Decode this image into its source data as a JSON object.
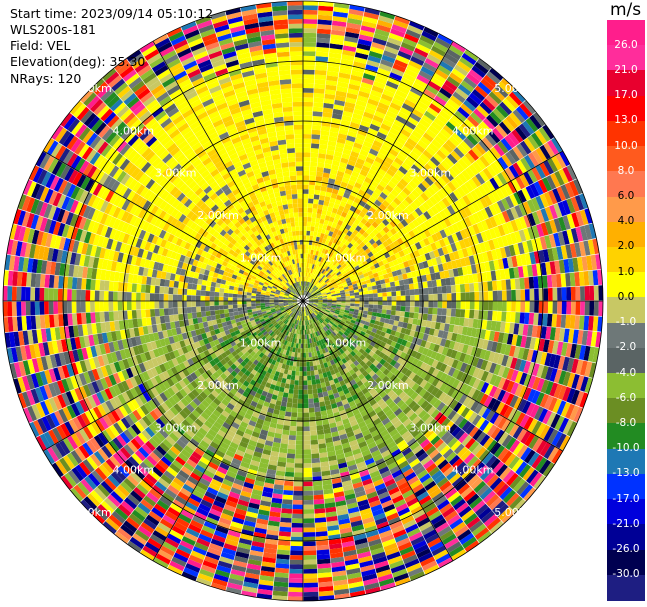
{
  "header": {
    "start_time": "Start time: 2023/09/14 05:10:12",
    "instrument": "WLS200s-181",
    "field": "Field: VEL",
    "elevation": "Elevation(deg): 35.30",
    "nrays": "NRays: 120"
  },
  "colorbar": {
    "unit": "m/s",
    "ticks": [
      "26.0",
      "21.0",
      "17.0",
      "13.0",
      "10.0",
      "8.0",
      "6.0",
      "4.0",
      "2.0",
      "1.0",
      "0.0",
      "-1.0",
      "-2.0",
      "-4.0",
      "-6.0",
      "-8.0",
      "-10.0",
      "-13.0",
      "-17.0",
      "-21.0",
      "-26.0",
      "-30.0"
    ],
    "colors": [
      "#ff1e8c",
      "#ff2d9b",
      "#e8002e",
      "#ff0000",
      "#ff3300",
      "#ff5a1e",
      "#ff7850",
      "#ff9a4a",
      "#ffb000",
      "#ffd200",
      "#ffff00",
      "#c8c864",
      "#6e7878",
      "#5a6464",
      "#8cbe32",
      "#6b8e23",
      "#228b22",
      "#1e78b4",
      "#0032ff",
      "#0000dc",
      "#000096",
      "#000050",
      "#1e1e82"
    ]
  },
  "chart_data": {
    "type": "ppi",
    "field": "VEL",
    "unit": "m/s",
    "elevation_deg": 35.3,
    "nrays": 120,
    "range_ring_labels": [
      "1.00km",
      "2.00km",
      "3.00km",
      "4.00km",
      "5.00km"
    ],
    "radial_velocity_summary": {
      "near_field_north": "positive ~1 to 4 m/s (yellow/orange)",
      "near_field_south": "negative ~-2 to -6 m/s (green)",
      "center": "~0 m/s (gray)",
      "beyond_approx_4km": "noise spanning -30 to 26 m/s"
    }
  }
}
